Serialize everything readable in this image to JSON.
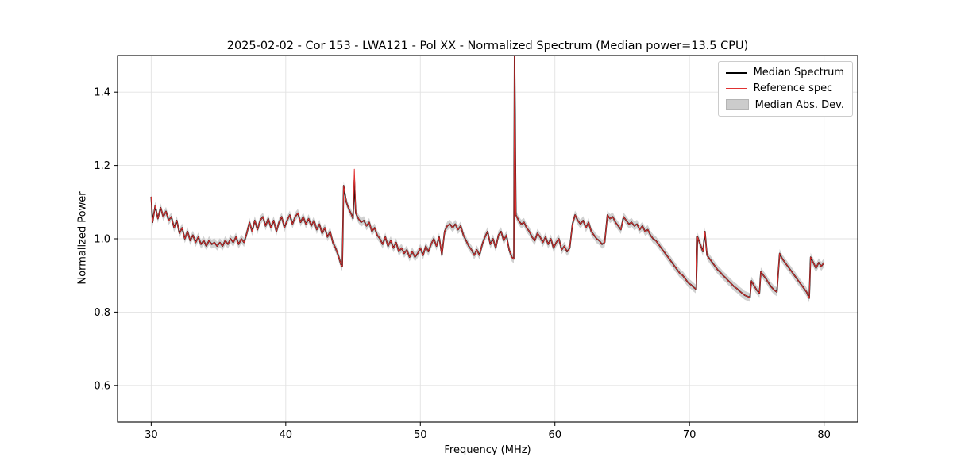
{
  "chart_data": {
    "type": "line",
    "title": "2025-02-02 - Cor 153 - LWA121 - Pol XX - Normalized Spectrum (Median power=13.5 CPU)",
    "xlabel": "Frequency (MHz)",
    "ylabel": "Normalized Power",
    "xlim": [
      27.5,
      82.5
    ],
    "ylim": [
      0.5,
      1.5
    ],
    "xticks": [
      30,
      40,
      50,
      60,
      70,
      80
    ],
    "yticks": [
      0.6,
      0.8,
      1.0,
      1.2,
      1.4
    ],
    "grid": true,
    "legend_position": "upper right",
    "legend": [
      "Median Spectrum",
      "Reference spec",
      "Median Abs. Dev."
    ],
    "series": [
      {
        "name": "Median Spectrum",
        "color": "#000000",
        "linewidth": 1.7
      },
      {
        "name": "Reference spec",
        "color": "#e03131",
        "linewidth": 1.0
      },
      {
        "name": "Median Abs. Dev.",
        "color": "#cccccc",
        "type": "band",
        "halfwidth": 0.012
      }
    ],
    "columns": [
      "freq_mhz",
      "median_power"
    ],
    "points": [
      [
        30.0,
        1.115
      ],
      [
        30.1,
        1.045
      ],
      [
        30.3,
        1.09
      ],
      [
        30.5,
        1.055
      ],
      [
        30.7,
        1.085
      ],
      [
        30.9,
        1.06
      ],
      [
        31.1,
        1.075
      ],
      [
        31.3,
        1.05
      ],
      [
        31.5,
        1.06
      ],
      [
        31.7,
        1.03
      ],
      [
        31.9,
        1.05
      ],
      [
        32.1,
        1.015
      ],
      [
        32.3,
        1.03
      ],
      [
        32.5,
        1.0
      ],
      [
        32.7,
        1.02
      ],
      [
        32.9,
        0.995
      ],
      [
        33.1,
        1.01
      ],
      [
        33.3,
        0.99
      ],
      [
        33.5,
        1.005
      ],
      [
        33.7,
        0.985
      ],
      [
        33.9,
        0.995
      ],
      [
        34.1,
        0.98
      ],
      [
        34.3,
        0.995
      ],
      [
        34.5,
        0.985
      ],
      [
        34.7,
        0.99
      ],
      [
        34.9,
        0.98
      ],
      [
        35.1,
        0.99
      ],
      [
        35.3,
        0.98
      ],
      [
        35.5,
        0.995
      ],
      [
        35.7,
        0.985
      ],
      [
        35.9,
        1.0
      ],
      [
        36.1,
        0.99
      ],
      [
        36.3,
        1.005
      ],
      [
        36.5,
        0.985
      ],
      [
        36.7,
        1.0
      ],
      [
        36.9,
        0.99
      ],
      [
        37.1,
        1.015
      ],
      [
        37.3,
        1.045
      ],
      [
        37.5,
        1.02
      ],
      [
        37.7,
        1.05
      ],
      [
        37.9,
        1.025
      ],
      [
        38.1,
        1.05
      ],
      [
        38.3,
        1.06
      ],
      [
        38.5,
        1.035
      ],
      [
        38.7,
        1.055
      ],
      [
        38.9,
        1.03
      ],
      [
        39.1,
        1.05
      ],
      [
        39.3,
        1.02
      ],
      [
        39.5,
        1.045
      ],
      [
        39.7,
        1.06
      ],
      [
        39.9,
        1.03
      ],
      [
        40.1,
        1.05
      ],
      [
        40.3,
        1.065
      ],
      [
        40.5,
        1.04
      ],
      [
        40.7,
        1.06
      ],
      [
        40.9,
        1.07
      ],
      [
        41.1,
        1.045
      ],
      [
        41.3,
        1.06
      ],
      [
        41.5,
        1.04
      ],
      [
        41.7,
        1.055
      ],
      [
        41.9,
        1.035
      ],
      [
        42.1,
        1.05
      ],
      [
        42.3,
        1.025
      ],
      [
        42.5,
        1.04
      ],
      [
        42.7,
        1.015
      ],
      [
        42.9,
        1.03
      ],
      [
        43.1,
        1.005
      ],
      [
        43.3,
        1.02
      ],
      [
        43.5,
        0.99
      ],
      [
        43.7,
        0.975
      ],
      [
        43.9,
        0.955
      ],
      [
        44.1,
        0.93
      ],
      [
        44.2,
        0.925
      ],
      [
        44.3,
        1.145
      ],
      [
        44.5,
        1.1
      ],
      [
        44.7,
        1.08
      ],
      [
        44.9,
        1.065
      ],
      [
        45.0,
        1.055
      ],
      [
        45.1,
        1.16
      ],
      [
        45.2,
        1.07
      ],
      [
        45.4,
        1.055
      ],
      [
        45.6,
        1.045
      ],
      [
        45.8,
        1.05
      ],
      [
        46.0,
        1.035
      ],
      [
        46.2,
        1.045
      ],
      [
        46.4,
        1.02
      ],
      [
        46.6,
        1.03
      ],
      [
        46.8,
        1.01
      ],
      [
        47.0,
        1.0
      ],
      [
        47.2,
        0.985
      ],
      [
        47.4,
        1.005
      ],
      [
        47.6,
        0.98
      ],
      [
        47.8,
        0.995
      ],
      [
        48.0,
        0.975
      ],
      [
        48.2,
        0.99
      ],
      [
        48.4,
        0.965
      ],
      [
        48.6,
        0.975
      ],
      [
        48.8,
        0.96
      ],
      [
        49.0,
        0.97
      ],
      [
        49.2,
        0.95
      ],
      [
        49.4,
        0.965
      ],
      [
        49.6,
        0.95
      ],
      [
        49.8,
        0.96
      ],
      [
        50.0,
        0.975
      ],
      [
        50.2,
        0.955
      ],
      [
        50.4,
        0.98
      ],
      [
        50.6,
        0.965
      ],
      [
        50.8,
        0.985
      ],
      [
        51.0,
        1.0
      ],
      [
        51.2,
        0.98
      ],
      [
        51.4,
        1.005
      ],
      [
        51.6,
        0.955
      ],
      [
        51.8,
        1.02
      ],
      [
        52.0,
        1.035
      ],
      [
        52.2,
        1.04
      ],
      [
        52.4,
        1.03
      ],
      [
        52.6,
        1.04
      ],
      [
        52.8,
        1.025
      ],
      [
        53.0,
        1.035
      ],
      [
        53.2,
        1.01
      ],
      [
        53.4,
        0.995
      ],
      [
        53.6,
        0.98
      ],
      [
        53.8,
        0.97
      ],
      [
        54.0,
        0.955
      ],
      [
        54.2,
        0.97
      ],
      [
        54.4,
        0.955
      ],
      [
        54.6,
        0.985
      ],
      [
        54.8,
        1.005
      ],
      [
        55.0,
        1.02
      ],
      [
        55.2,
        0.985
      ],
      [
        55.4,
        1.0
      ],
      [
        55.6,
        0.975
      ],
      [
        55.8,
        1.01
      ],
      [
        56.0,
        1.02
      ],
      [
        56.2,
        0.995
      ],
      [
        56.4,
        1.01
      ],
      [
        56.6,
        0.97
      ],
      [
        56.8,
        0.95
      ],
      [
        56.95,
        0.945
      ],
      [
        57.0,
        1.52
      ],
      [
        57.1,
        1.065
      ],
      [
        57.3,
        1.05
      ],
      [
        57.5,
        1.04
      ],
      [
        57.7,
        1.045
      ],
      [
        57.9,
        1.03
      ],
      [
        58.1,
        1.02
      ],
      [
        58.3,
        1.005
      ],
      [
        58.5,
        0.995
      ],
      [
        58.7,
        1.015
      ],
      [
        58.9,
        1.005
      ],
      [
        59.1,
        0.99
      ],
      [
        59.3,
        1.005
      ],
      [
        59.5,
        0.985
      ],
      [
        59.7,
        1.0
      ],
      [
        59.9,
        0.975
      ],
      [
        60.1,
        0.99
      ],
      [
        60.3,
        1.0
      ],
      [
        60.5,
        0.97
      ],
      [
        60.7,
        0.98
      ],
      [
        60.9,
        0.965
      ],
      [
        61.1,
        0.975
      ],
      [
        61.3,
        1.04
      ],
      [
        61.5,
        1.065
      ],
      [
        61.7,
        1.05
      ],
      [
        61.9,
        1.04
      ],
      [
        62.1,
        1.05
      ],
      [
        62.3,
        1.03
      ],
      [
        62.5,
        1.045
      ],
      [
        62.7,
        1.02
      ],
      [
        62.9,
        1.01
      ],
      [
        63.1,
        1.0
      ],
      [
        63.3,
        0.995
      ],
      [
        63.5,
        0.985
      ],
      [
        63.7,
        0.99
      ],
      [
        63.9,
        1.065
      ],
      [
        64.1,
        1.055
      ],
      [
        64.3,
        1.06
      ],
      [
        64.5,
        1.045
      ],
      [
        64.7,
        1.035
      ],
      [
        64.9,
        1.025
      ],
      [
        65.1,
        1.06
      ],
      [
        65.3,
        1.05
      ],
      [
        65.5,
        1.04
      ],
      [
        65.7,
        1.045
      ],
      [
        65.9,
        1.035
      ],
      [
        66.1,
        1.04
      ],
      [
        66.3,
        1.025
      ],
      [
        66.5,
        1.035
      ],
      [
        66.7,
        1.02
      ],
      [
        66.9,
        1.025
      ],
      [
        67.1,
        1.01
      ],
      [
        67.3,
        1.0
      ],
      [
        67.5,
        0.995
      ],
      [
        67.7,
        0.985
      ],
      [
        67.9,
        0.975
      ],
      [
        68.1,
        0.965
      ],
      [
        68.3,
        0.955
      ],
      [
        68.5,
        0.945
      ],
      [
        68.7,
        0.935
      ],
      [
        68.9,
        0.925
      ],
      [
        69.1,
        0.915
      ],
      [
        69.3,
        0.905
      ],
      [
        69.5,
        0.9
      ],
      [
        69.7,
        0.89
      ],
      [
        69.9,
        0.88
      ],
      [
        70.1,
        0.875
      ],
      [
        70.3,
        0.868
      ],
      [
        70.5,
        0.862
      ],
      [
        70.6,
        1.005
      ],
      [
        70.8,
        0.985
      ],
      [
        71.0,
        0.965
      ],
      [
        71.15,
        1.02
      ],
      [
        71.3,
        0.955
      ],
      [
        71.5,
        0.945
      ],
      [
        71.7,
        0.935
      ],
      [
        71.9,
        0.925
      ],
      [
        72.1,
        0.915
      ],
      [
        72.3,
        0.908
      ],
      [
        72.5,
        0.9
      ],
      [
        72.7,
        0.893
      ],
      [
        72.9,
        0.885
      ],
      [
        73.1,
        0.878
      ],
      [
        73.3,
        0.87
      ],
      [
        73.5,
        0.865
      ],
      [
        73.7,
        0.858
      ],
      [
        73.9,
        0.852
      ],
      [
        74.1,
        0.846
      ],
      [
        74.3,
        0.843
      ],
      [
        74.5,
        0.84
      ],
      [
        74.6,
        0.885
      ],
      [
        74.8,
        0.872
      ],
      [
        75.0,
        0.86
      ],
      [
        75.2,
        0.852
      ],
      [
        75.3,
        0.91
      ],
      [
        75.5,
        0.9
      ],
      [
        75.7,
        0.89
      ],
      [
        75.9,
        0.878
      ],
      [
        76.1,
        0.868
      ],
      [
        76.3,
        0.86
      ],
      [
        76.5,
        0.855
      ],
      [
        76.7,
        0.96
      ],
      [
        76.9,
        0.945
      ],
      [
        77.1,
        0.935
      ],
      [
        77.3,
        0.925
      ],
      [
        77.5,
        0.915
      ],
      [
        77.7,
        0.905
      ],
      [
        77.9,
        0.895
      ],
      [
        78.1,
        0.885
      ],
      [
        78.3,
        0.875
      ],
      [
        78.5,
        0.865
      ],
      [
        78.7,
        0.855
      ],
      [
        78.9,
        0.838
      ],
      [
        79.0,
        0.95
      ],
      [
        79.2,
        0.935
      ],
      [
        79.4,
        0.92
      ],
      [
        79.6,
        0.935
      ],
      [
        79.8,
        0.925
      ],
      [
        80.0,
        0.935
      ]
    ],
    "reference_overrides": [
      [
        45.1,
        1.19
      ],
      [
        57.0,
        1.5
      ]
    ]
  }
}
